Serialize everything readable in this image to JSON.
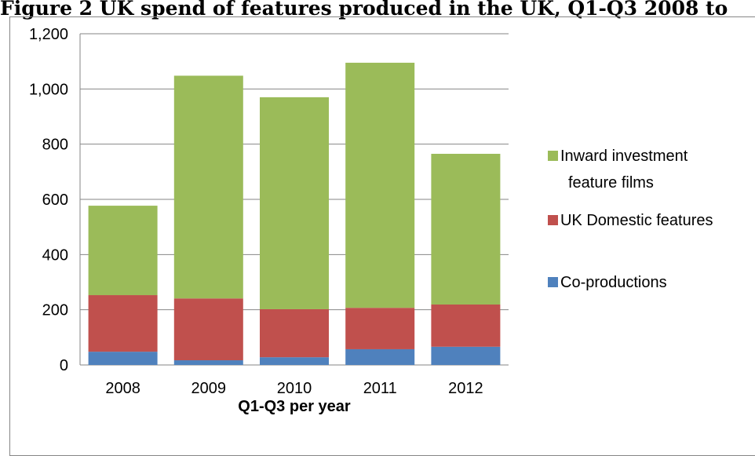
{
  "title": "Figure 2 UK spend of features produced in the UK, Q1-Q3 2008 to",
  "chart_data": {
    "type": "bar",
    "stacked": true,
    "categories": [
      "2008",
      "2009",
      "2010",
      "2011",
      "2012"
    ],
    "series": [
      {
        "name": "Co-productions",
        "color": "#4F81BD",
        "values": [
          48,
          17,
          28,
          57,
          66
        ]
      },
      {
        "name": "UK Domestic features",
        "color": "#C0504D",
        "values": [
          205,
          224,
          174,
          150,
          153
        ]
      },
      {
        "name": "Inward investment feature films",
        "legend_lines": [
          "Inward investment",
          "feature films"
        ],
        "color": "#9BBB59",
        "values": [
          324,
          807,
          768,
          888,
          546
        ]
      }
    ],
    "ylim": [
      0,
      1200
    ],
    "yticks": [
      "0",
      "200",
      "400",
      "600",
      "800",
      "1,000",
      "1,200"
    ],
    "ytick_values": [
      0,
      200,
      400,
      600,
      800,
      1000,
      1200
    ],
    "xlabel": "Q1-Q3 per year",
    "ylabel": "",
    "legend_position": "right",
    "grid": true
  }
}
